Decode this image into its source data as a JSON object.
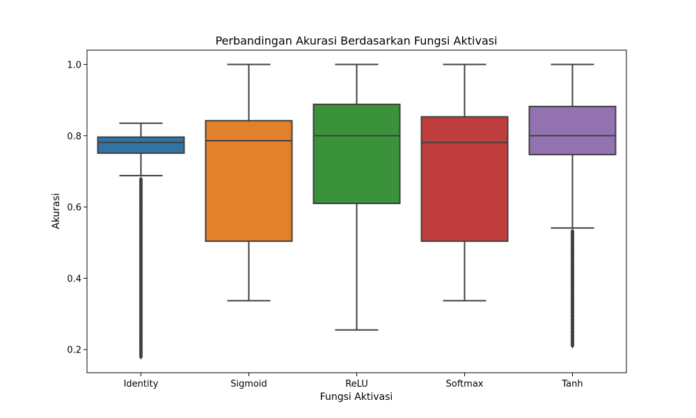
{
  "chart_data": {
    "type": "box",
    "title": "Perbandingan Akurasi Berdasarkan Fungsi Aktivasi",
    "xlabel": "Fungsi Aktivasi",
    "ylabel": "Akurasi",
    "ylim": [
      0.135,
      1.04
    ],
    "yticks": [
      "0.2",
      "0.4",
      "0.6",
      "0.8",
      "1.0"
    ],
    "grid": false,
    "categories": [
      "Identity",
      "Sigmoid",
      "ReLU",
      "Softmax",
      "Tanh"
    ],
    "boxes": [
      {
        "category": "Identity",
        "color": "#3274a1",
        "whisker_low": 0.688,
        "q1": 0.751,
        "median": 0.781,
        "q3": 0.796,
        "whisker_high": 0.835,
        "outliers": {
          "from": 0.678,
          "to": 0.18,
          "count": 110
        }
      },
      {
        "category": "Sigmoid",
        "color": "#e1812c",
        "whisker_low": 0.337,
        "q1": 0.504,
        "median": 0.786,
        "q3": 0.842,
        "whisker_high": 1.0,
        "outliers": null
      },
      {
        "category": "ReLU",
        "color": "#3a923a",
        "whisker_low": 0.255,
        "q1": 0.61,
        "median": 0.8,
        "q3": 0.888,
        "whisker_high": 1.0,
        "outliers": null
      },
      {
        "category": "Softmax",
        "color": "#c03d3e",
        "whisker_low": 0.337,
        "q1": 0.504,
        "median": 0.781,
        "q3": 0.853,
        "whisker_high": 1.0,
        "outliers": null
      },
      {
        "category": "Tanh",
        "color": "#9372b2",
        "whisker_low": 0.541,
        "q1": 0.747,
        "median": 0.8,
        "q3": 0.882,
        "whisker_high": 1.0,
        "outliers": {
          "from": 0.532,
          "to": 0.211,
          "count": 80
        }
      }
    ]
  }
}
